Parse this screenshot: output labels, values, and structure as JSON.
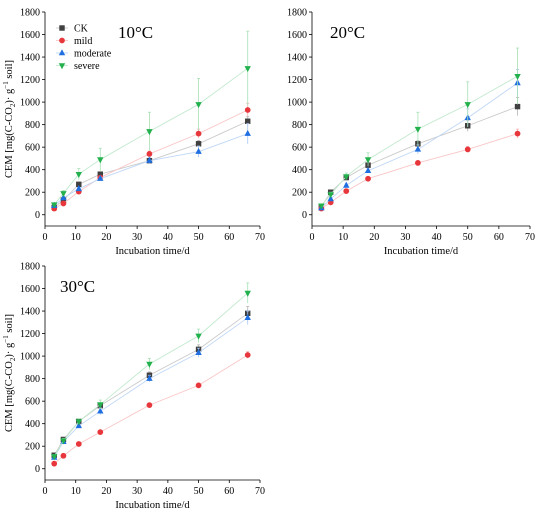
{
  "figure": {
    "series_order": [
      "CK",
      "mild",
      "moderate",
      "severe"
    ],
    "series_style": {
      "CK": {
        "color": "#404040",
        "marker": "square"
      },
      "mild": {
        "color": "#e8373c",
        "marker": "circle"
      },
      "moderate": {
        "color": "#1f6fe0",
        "marker": "triangle-up"
      },
      "severe": {
        "color": "#22b14c",
        "marker": "triangle-down"
      }
    }
  },
  "chart_data": [
    {
      "type": "scatter",
      "title": "10°C",
      "xlabel": "Incubation time/d",
      "ylabel_parts": [
        "CEM [mg(C-CO",
        "2",
        ")· g",
        "−1",
        " soil]"
      ],
      "xlim": [
        0,
        70
      ],
      "ylim": [
        -100,
        1800
      ],
      "xticks": [
        0,
        10,
        20,
        30,
        40,
        50,
        60,
        70
      ],
      "yticks": [
        0,
        200,
        400,
        600,
        800,
        1000,
        1200,
        1400,
        1600,
        1800
      ],
      "x": [
        3,
        6,
        11,
        18,
        34,
        50,
        66
      ],
      "legend": {
        "shown": true,
        "position": "top-left"
      },
      "series": [
        {
          "name": "CK",
          "values": [
            65,
            130,
            270,
            360,
            480,
            630,
            830
          ],
          "errors": [
            8,
            10,
            12,
            15,
            20,
            30,
            40
          ]
        },
        {
          "name": "mild",
          "values": [
            55,
            100,
            205,
            330,
            540,
            720,
            930
          ],
          "errors": [
            8,
            10,
            12,
            15,
            25,
            40,
            60
          ]
        },
        {
          "name": "moderate",
          "values": [
            80,
            150,
            230,
            320,
            480,
            560,
            720
          ],
          "errors": [
            8,
            10,
            12,
            15,
            30,
            50,
            90
          ]
        },
        {
          "name": "severe",
          "values": [
            90,
            190,
            360,
            490,
            740,
            980,
            1300
          ],
          "errors": [
            15,
            25,
            50,
            100,
            170,
            230,
            330
          ]
        }
      ]
    },
    {
      "type": "scatter",
      "title": "20°C",
      "xlabel": "Incubation time/d",
      "xlim": [
        0,
        70
      ],
      "ylim": [
        -100,
        1800
      ],
      "xticks": [
        0,
        10,
        20,
        30,
        40,
        50,
        60,
        70
      ],
      "yticks": [
        0,
        200,
        400,
        600,
        800,
        1000,
        1200,
        1400,
        1600,
        1800
      ],
      "x": [
        3,
        6,
        11,
        18,
        34,
        50,
        66
      ],
      "legend": {
        "shown": false
      },
      "series": [
        {
          "name": "CK",
          "values": [
            70,
            200,
            330,
            440,
            630,
            790,
            960
          ],
          "errors": [
            8,
            12,
            15,
            20,
            30,
            50,
            80
          ]
        },
        {
          "name": "mild",
          "values": [
            55,
            110,
            210,
            320,
            460,
            580,
            720
          ],
          "errors": [
            8,
            10,
            12,
            15,
            20,
            25,
            40
          ]
        },
        {
          "name": "moderate",
          "values": [
            60,
            140,
            260,
            390,
            580,
            860,
            1170
          ],
          "errors": [
            8,
            12,
            15,
            20,
            40,
            80,
            120
          ]
        },
        {
          "name": "severe",
          "values": [
            80,
            180,
            340,
            490,
            760,
            980,
            1230
          ],
          "errors": [
            10,
            20,
            30,
            60,
            150,
            200,
            250
          ]
        }
      ]
    },
    {
      "type": "scatter",
      "title": "30°C",
      "ylabel_parts": [
        "CEM [mg(C-CO",
        "2",
        ")· g",
        "−1",
        " soil]"
      ],
      "xlabel": "Incubation time/d",
      "xlim": [
        0,
        70
      ],
      "ylim": [
        -100,
        1800
      ],
      "xticks": [
        0,
        10,
        20,
        30,
        40,
        50,
        60,
        70
      ],
      "yticks": [
        0,
        200,
        400,
        600,
        800,
        1000,
        1200,
        1400,
        1600,
        1800
      ],
      "x": [
        3,
        6,
        11,
        18,
        34,
        50,
        66
      ],
      "legend": {
        "shown": false
      },
      "series": [
        {
          "name": "CK",
          "values": [
            120,
            260,
            420,
            560,
            830,
            1060,
            1380
          ],
          "errors": [
            10,
            15,
            20,
            25,
            30,
            40,
            60
          ]
        },
        {
          "name": "mild",
          "values": [
            45,
            115,
            220,
            325,
            565,
            740,
            1010
          ],
          "errors": [
            5,
            8,
            10,
            12,
            15,
            20,
            30
          ]
        },
        {
          "name": "moderate",
          "values": [
            100,
            240,
            380,
            510,
            800,
            1030,
            1340
          ],
          "errors": [
            10,
            15,
            20,
            30,
            30,
            40,
            60
          ]
        },
        {
          "name": "severe",
          "values": [
            110,
            250,
            420,
            570,
            930,
            1180,
            1560
          ],
          "errors": [
            10,
            20,
            25,
            40,
            50,
            60,
            90
          ]
        }
      ]
    }
  ]
}
